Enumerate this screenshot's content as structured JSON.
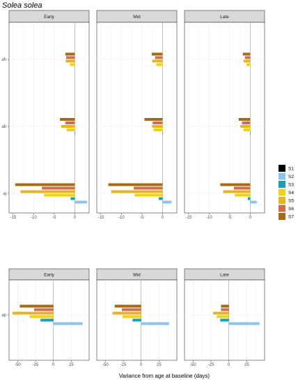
{
  "title": "Solea solea",
  "xlabel": "Variance from age at baseline (days)",
  "colors": {
    "S1": "#000000",
    "S2": "#8ec3ef",
    "S3": "#1b9fb3",
    "S4": "#f2d11b",
    "S5": "#e3b51e",
    "S6": "#d26c50",
    "S7": "#a56b14"
  },
  "legend": {
    "placement": "right",
    "items": [
      "S1",
      "S2",
      "S3",
      "S4",
      "S5",
      "S6",
      "S7"
    ]
  },
  "chart_data": [
    {
      "type": "bar",
      "orientation": "horizontal",
      "facet_labels": [
        "Early",
        "Mid",
        "Late"
      ],
      "categories": [
        "ah",
        "ab",
        "aj"
      ],
      "xlim": [
        -16,
        3.5
      ],
      "xticks": [
        -15,
        -10,
        -5,
        0
      ],
      "grid": true,
      "panels": [
        {
          "label": "Early",
          "series": {
            "ah": {
              "S7": -2.3,
              "S6": -2.1,
              "S5": -2.2,
              "S4": -1.2
            },
            "ab": {
              "S7": -3.6,
              "S6": -2.3,
              "S5": -3.3,
              "S4": -2.0,
              "S3": 0.1
            },
            "aj": {
              "S7": -14.5,
              "S6": -8.0,
              "S5": -13.2,
              "S4": -7.5,
              "S3": -1.0,
              "S2": 3.0
            }
          }
        },
        {
          "label": "Mid",
          "series": {
            "ah": {
              "S7": -2.6,
              "S6": -1.8,
              "S5": -2.5,
              "S4": -1.5
            },
            "ab": {
              "S7": -4.4,
              "S6": -2.4,
              "S5": -2.5,
              "S4": -2.2,
              "S3": 0.1
            },
            "aj": {
              "S7": -13.2,
              "S6": -7.0,
              "S5": -12.5,
              "S4": -6.8,
              "S3": -0.9,
              "S2": 2.2
            }
          }
        },
        {
          "label": "Late",
          "series": {
            "ah": {
              "S7": -1.8,
              "S6": -1.3,
              "S5": -1.6,
              "S4": -0.9
            },
            "ab": {
              "S7": -2.8,
              "S6": -2.0,
              "S5": -2.4,
              "S4": -1.6,
              "S3": 0.1
            },
            "aj": {
              "S7": -7.3,
              "S6": -4.0,
              "S5": -6.6,
              "S4": -3.8,
              "S3": -0.6,
              "S2": 1.6
            }
          }
        }
      ]
    },
    {
      "type": "bar",
      "orientation": "horizontal",
      "facet_labels": [
        "Early",
        "Mid",
        "Late"
      ],
      "categories": [
        "ap"
      ],
      "xlim": [
        -62,
        50
      ],
      "xticks": [
        -50,
        -25,
        0,
        25
      ],
      "grid": true,
      "panels": [
        {
          "label": "Early",
          "series": {
            "ap": {
              "S7": -47,
              "S6": -27,
              "S5": -57,
              "S4": -33,
              "S3": -18,
              "S2": 41
            }
          }
        },
        {
          "label": "Mid",
          "series": {
            "ap": {
              "S7": -37,
              "S6": -27,
              "S5": -40,
              "S4": -26,
              "S3": -12,
              "S2": 39
            }
          }
        },
        {
          "label": "Late",
          "series": {
            "ap": {
              "S7": -11,
              "S6": -11,
              "S5": -22,
              "S4": -17,
              "S3": -12,
              "S2": 43
            }
          }
        }
      ]
    }
  ]
}
